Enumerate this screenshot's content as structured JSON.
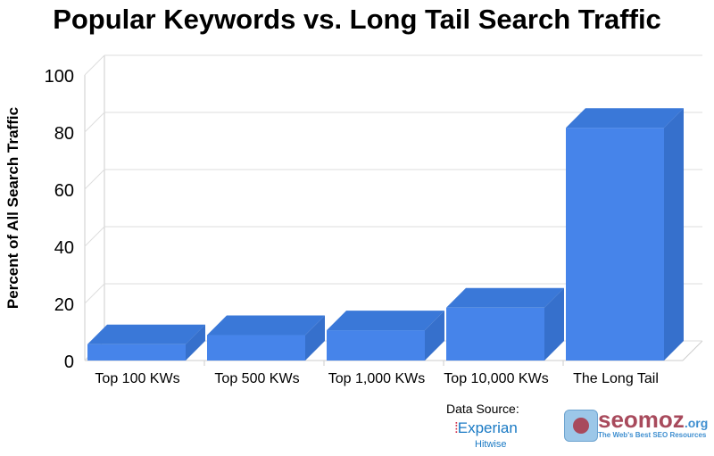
{
  "chart_data": {
    "type": "bar",
    "title": "Popular Keywords vs. Long Tail Search Traffic",
    "ylabel": "Percent of All Search Traffic",
    "xlabel": "",
    "categories": [
      "Top 100 KWs",
      "Top 500 KWs",
      "Top 1,000 KWs",
      "Top 10,000 KWs",
      "The Long Tail"
    ],
    "values": [
      5.7,
      8.9,
      10.6,
      18.5,
      81.5
    ],
    "ylim": [
      0,
      100
    ],
    "yticks": [
      "0",
      "20",
      "40",
      "60",
      "80",
      "100"
    ],
    "grid": true,
    "style": "3d",
    "bar_color": "#4684ea",
    "bar_top_color": "#3a78d8",
    "bar_side_color": "#3670cc"
  },
  "footer": {
    "data_source": "Data Source:",
    "experian": "Experian",
    "hitwise": "Hitwise",
    "seomoz": "seomoz",
    "seomoz_tld": ".org",
    "seomoz_tagline": "The Web's Best SEO Resources"
  }
}
